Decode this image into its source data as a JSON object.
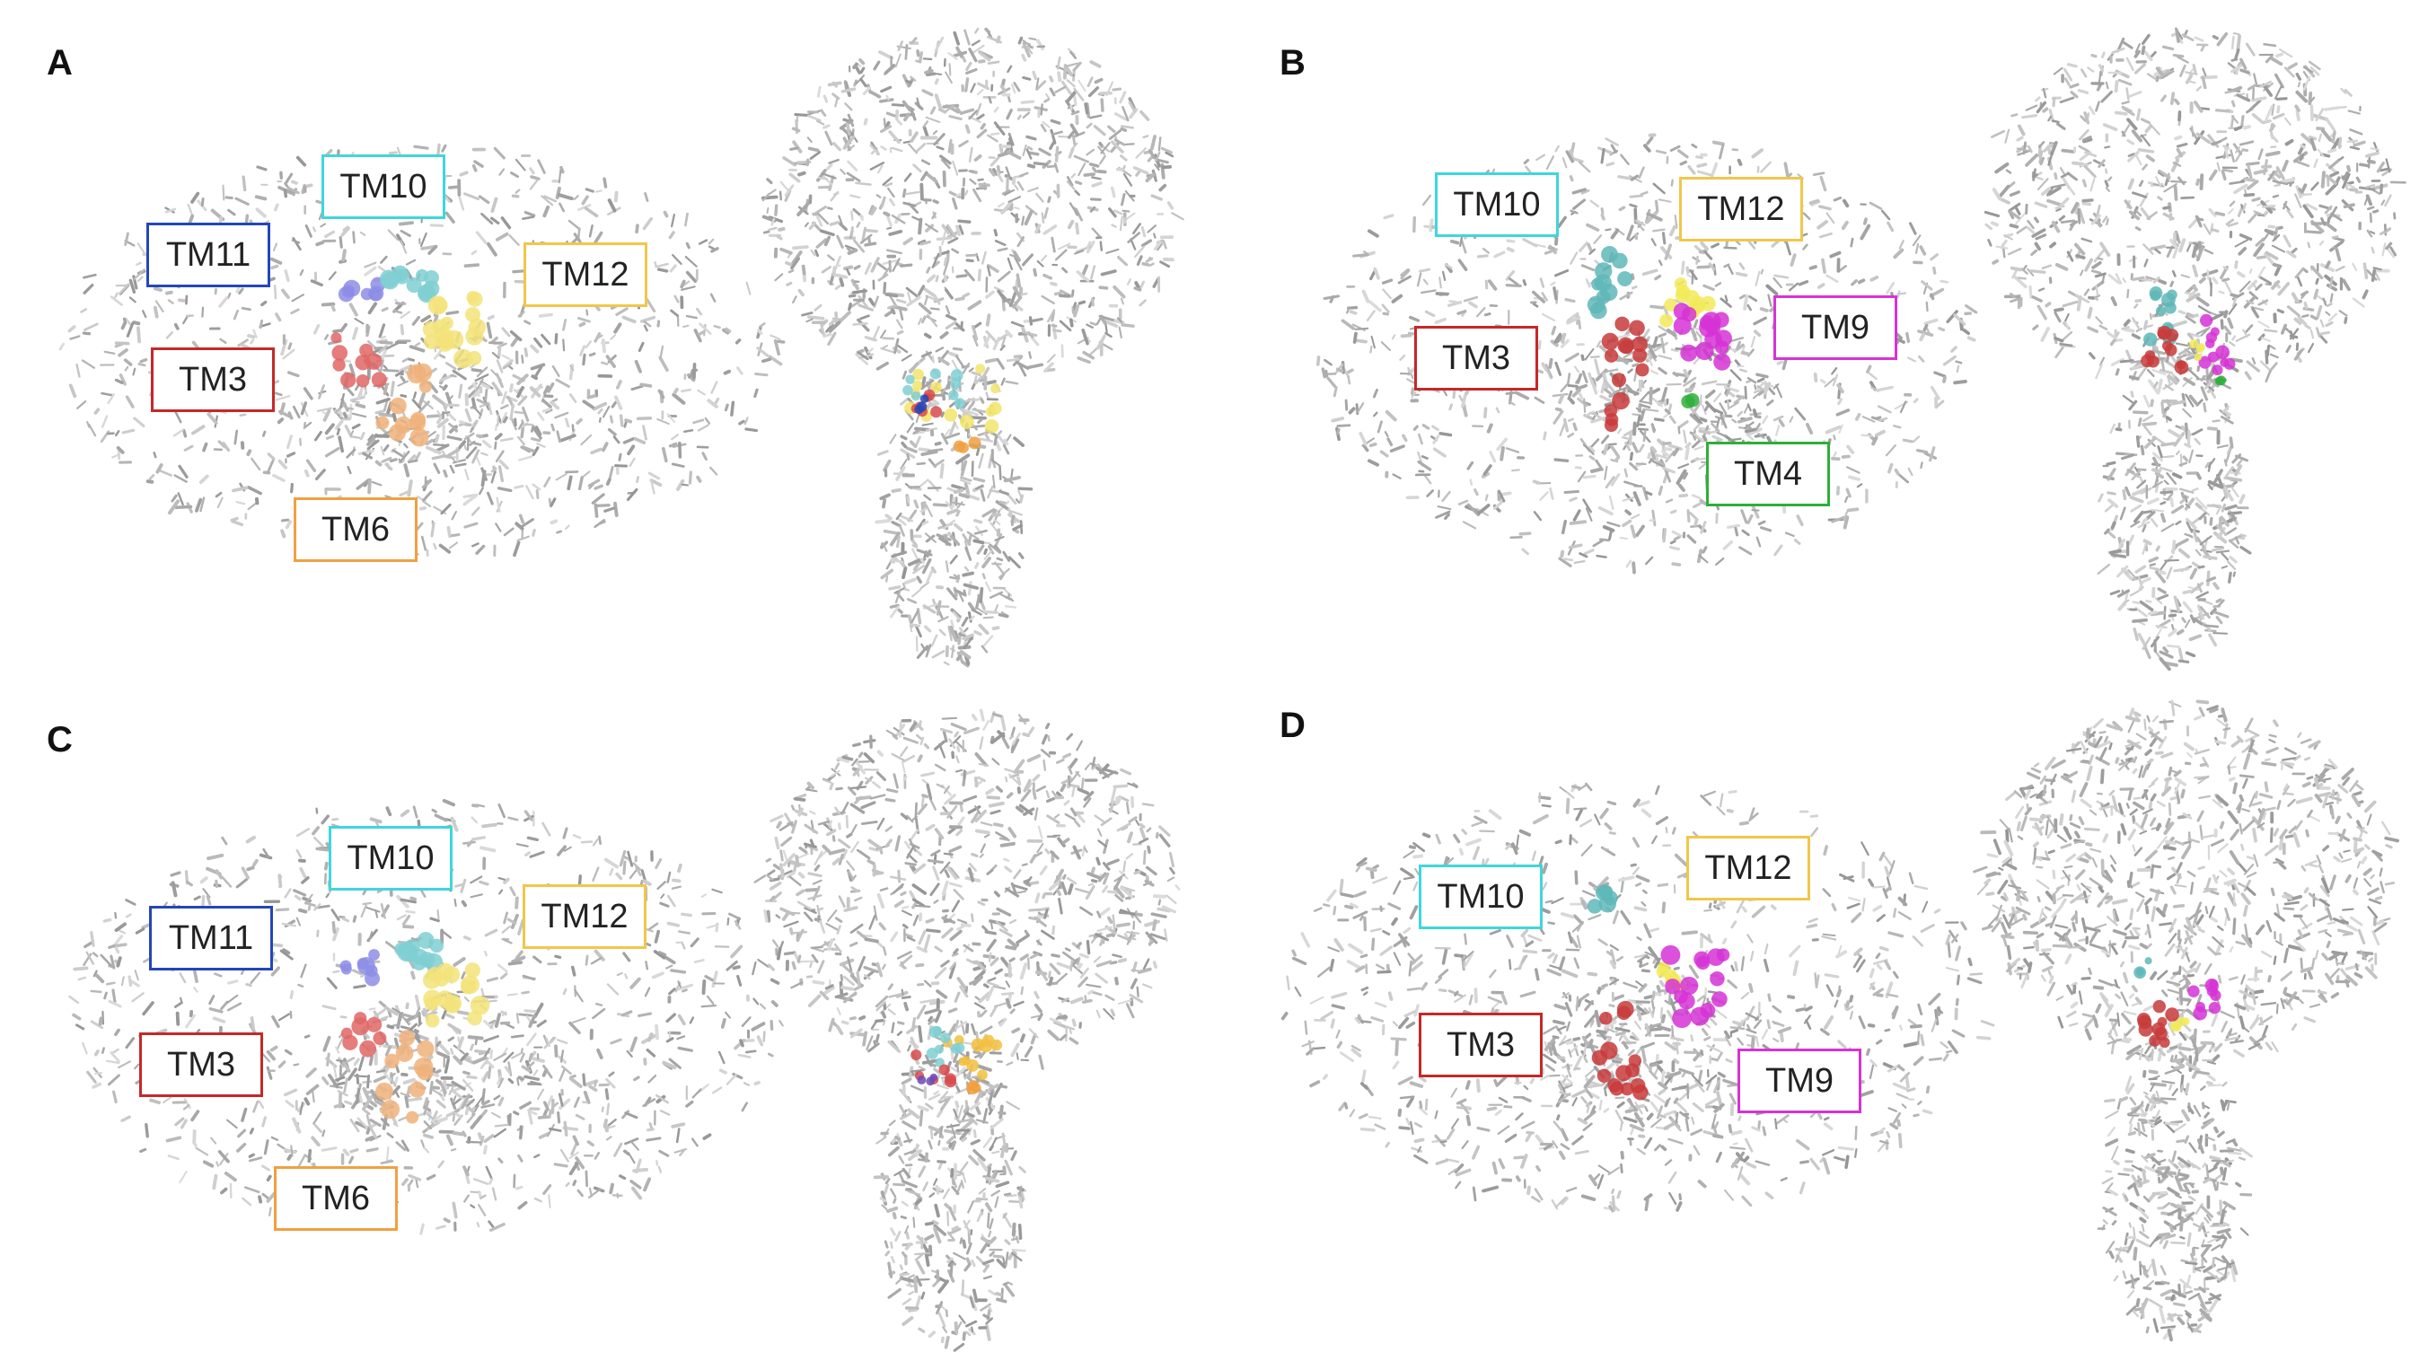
{
  "colors": {
    "TM3": "#c62828",
    "TM4": "#2eaf3a",
    "TM6": "#f0a040",
    "TM9": "#d633d6",
    "TM10": "#3fd6dc",
    "TM11": "#2446b8",
    "TM12": "#f2c64a",
    "backbone": "#b9b9b9"
  },
  "panels": [
    {
      "letter": "A",
      "labels": [
        {
          "text": "TM10",
          "color_key": "TM10"
        },
        {
          "text": "TM11",
          "color_key": "TM11"
        },
        {
          "text": "TM12",
          "color_key": "TM12"
        },
        {
          "text": "TM3",
          "color_key": "TM3"
        },
        {
          "text": "TM6",
          "color_key": "TM6"
        }
      ]
    },
    {
      "letter": "B",
      "labels": [
        {
          "text": "TM10",
          "color_key": "TM10"
        },
        {
          "text": "TM12",
          "color_key": "TM12"
        },
        {
          "text": "TM9",
          "color_key": "TM9"
        },
        {
          "text": "TM3",
          "color_key": "TM3"
        },
        {
          "text": "TM4",
          "color_key": "TM4"
        }
      ]
    },
    {
      "letter": "C",
      "labels": [
        {
          "text": "TM10",
          "color_key": "TM10"
        },
        {
          "text": "TM11",
          "color_key": "TM11"
        },
        {
          "text": "TM12",
          "color_key": "TM12"
        },
        {
          "text": "TM3",
          "color_key": "TM3"
        },
        {
          "text": "TM6",
          "color_key": "TM6"
        }
      ]
    },
    {
      "letter": "D",
      "labels": [
        {
          "text": "TM10",
          "color_key": "TM10"
        },
        {
          "text": "TM12",
          "color_key": "TM12"
        },
        {
          "text": "TM3",
          "color_key": "TM3"
        },
        {
          "text": "TM9",
          "color_key": "TM9"
        }
      ]
    }
  ]
}
